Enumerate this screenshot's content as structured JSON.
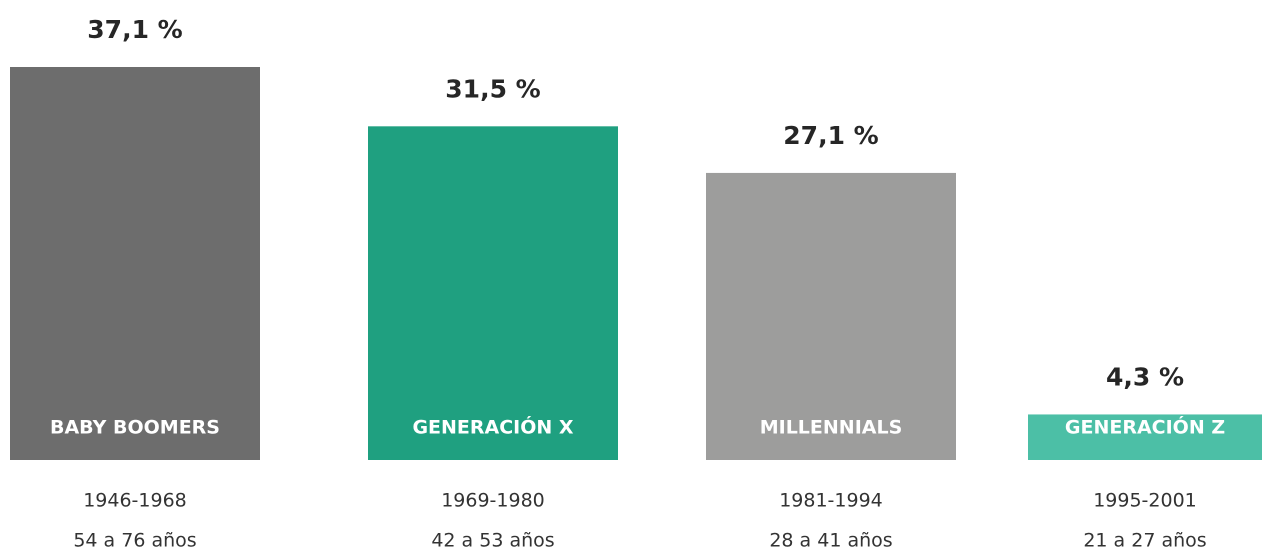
{
  "chart_data": {
    "type": "bar",
    "categories": [
      "BABY BOOMERS",
      "GENERACIÓN X",
      "MILLENNIALS",
      "GENERACIÓN Z"
    ],
    "values": [
      37.1,
      31.5,
      27.1,
      4.3
    ],
    "value_labels": [
      "37,1 %",
      "31,5 %",
      "27,1 %",
      "4,3 %"
    ],
    "colors": [
      "#6d6d6d",
      "#1fa080",
      "#9d9d9c",
      "#4cbfa6"
    ],
    "periods": [
      "1946-1968",
      "1969-1980",
      "1981-1994",
      "1995-2001"
    ],
    "ages": [
      "54 a 76 años",
      "42 a 53 años",
      "28 a 41 años",
      "21 a 27 años"
    ]
  }
}
